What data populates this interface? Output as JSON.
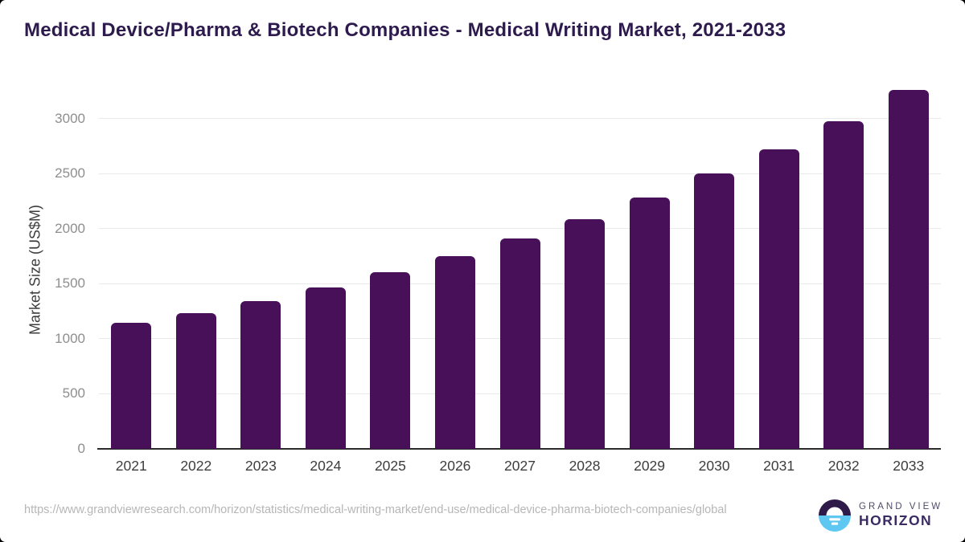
{
  "page": {
    "title": "Medical Device/Pharma & Biotech Companies - Medical Writing Market, 2021-2033"
  },
  "chart_data": {
    "type": "bar",
    "categories": [
      "2021",
      "2022",
      "2023",
      "2024",
      "2025",
      "2026",
      "2027",
      "2028",
      "2029",
      "2030",
      "2031",
      "2032",
      "2033"
    ],
    "values": [
      1145,
      1230,
      1345,
      1470,
      1605,
      1750,
      1910,
      2090,
      2285,
      2500,
      2720,
      2980,
      3260
    ],
    "title": "Medical Device/Pharma & Biotech Companies - Medical Writing Market, 2021-2033",
    "xlabel": "",
    "ylabel": "Market Size (US$M)",
    "ylim": [
      0,
      3350
    ],
    "yticks": [
      0,
      500,
      1000,
      1500,
      2000,
      2500,
      3000
    ],
    "grid": true,
    "legend": "none",
    "bar_color": "#471059"
  },
  "footer": {
    "source_url": "https://www.grandviewresearch.com/horizon/statistics/medical-writing-market/end-use/medical-device-pharma-biotech-companies/global",
    "brand": {
      "line1": "GRAND VIEW",
      "line2": "HORIZON"
    }
  },
  "colors": {
    "bar": "#471059",
    "title_text": "#2e1b4d",
    "axis_text": "#3d3d3d",
    "ytick_text": "#8e8e8e",
    "gridline": "#e9e9e9",
    "url_text": "#b6b6b6",
    "logo_dark": "#2e1b49",
    "logo_blue": "#5ec7f2"
  }
}
